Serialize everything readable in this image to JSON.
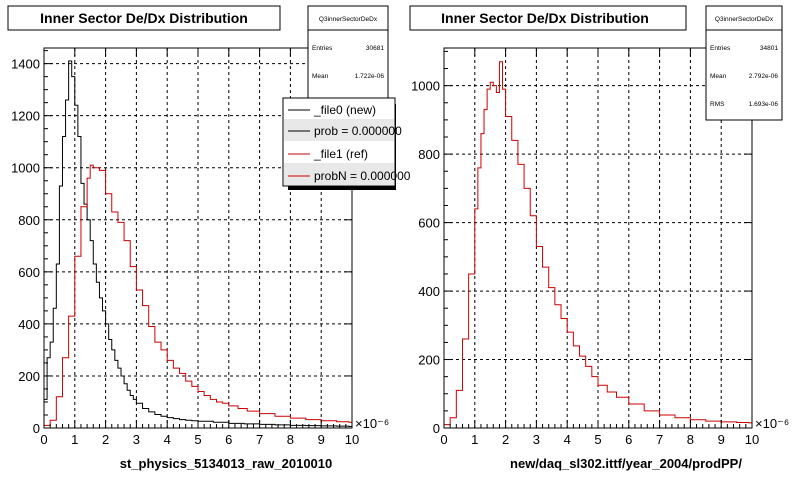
{
  "colors": {
    "new": "#000000",
    "ref": "#cc0000",
    "grid": "#000000",
    "background": "#ffffff"
  },
  "footer": "",
  "chart_data": [
    {
      "type": "line",
      "title": "Inner Sector De/Dx Distribution",
      "xlabel": "st_physics_5134013_raw_2010010",
      "ylabel": "",
      "x_exponent": "×10⁻⁶",
      "xlim": [
        0,
        10
      ],
      "ylim": [
        0,
        1460
      ],
      "x_ticks": [
        0,
        1,
        2,
        3,
        4,
        5,
        6,
        7,
        8,
        9,
        10
      ],
      "y_ticks": [
        0,
        200,
        400,
        600,
        800,
        1000,
        1200,
        1400
      ],
      "grid": true,
      "stats": {
        "header": "Q3innerSectorDeDx",
        "rows": [
          {
            "label": "Entries",
            "value": "30681"
          },
          {
            "label": "Mean",
            "value": "1.722e-06"
          }
        ]
      },
      "legend": {
        "placement": "top-right",
        "entries": [
          {
            "label": "_file0 (new)",
            "color": "#000000"
          },
          {
            "label": "prob = 0.000000",
            "color": "#000000"
          },
          {
            "label": "_file1 (ref)",
            "color": "#cc0000"
          },
          {
            "label": "probN = 0.000000",
            "color": "#cc0000"
          }
        ]
      },
      "series": [
        {
          "name": "_file0 (new)",
          "color": "#000000",
          "x": [
            0.0,
            0.1,
            0.2,
            0.3,
            0.4,
            0.5,
            0.6,
            0.7,
            0.8,
            0.9,
            1.0,
            1.1,
            1.2,
            1.3,
            1.4,
            1.5,
            1.6,
            1.7,
            1.8,
            1.9,
            2.0,
            2.1,
            2.2,
            2.3,
            2.4,
            2.5,
            2.6,
            2.7,
            2.8,
            2.9,
            3.0,
            3.2,
            3.4,
            3.6,
            3.8,
            4.0,
            4.2,
            4.4,
            4.6,
            4.8,
            5.0,
            5.5,
            6.0,
            6.5,
            7.0,
            7.5,
            8.0,
            8.5,
            9.0,
            9.5,
            9.9
          ],
          "values": [
            110,
            270,
            330,
            460,
            630,
            930,
            1120,
            1260,
            1410,
            1350,
            1240,
            1120,
            940,
            860,
            800,
            720,
            630,
            560,
            500,
            450,
            400,
            340,
            300,
            260,
            230,
            200,
            170,
            145,
            125,
            110,
            95,
            75,
            62,
            52,
            45,
            40,
            36,
            32,
            30,
            28,
            26,
            22,
            18,
            16,
            14,
            12,
            10,
            9,
            8,
            7,
            6
          ]
        },
        {
          "name": "_file1 (ref)",
          "color": "#cc0000",
          "x": [
            0.0,
            0.2,
            0.4,
            0.6,
            0.8,
            1.0,
            1.2,
            1.4,
            1.5,
            1.6,
            1.8,
            2.0,
            2.2,
            2.4,
            2.6,
            2.8,
            3.0,
            3.2,
            3.4,
            3.6,
            3.8,
            4.0,
            4.2,
            4.4,
            4.6,
            4.8,
            5.0,
            5.2,
            5.4,
            5.6,
            5.8,
            6.0,
            6.3,
            6.6,
            7.0,
            7.5,
            8.0,
            8.5,
            9.0,
            9.5,
            9.9
          ],
          "values": [
            10,
            30,
            120,
            270,
            430,
            660,
            850,
            960,
            1010,
            1000,
            990,
            900,
            830,
            790,
            720,
            620,
            530,
            470,
            390,
            330,
            300,
            260,
            230,
            210,
            180,
            160,
            140,
            125,
            110,
            100,
            95,
            85,
            75,
            65,
            55,
            45,
            38,
            32,
            28,
            24,
            22
          ]
        }
      ]
    },
    {
      "type": "line",
      "title": "Inner Sector De/Dx Distribution",
      "xlabel": "new/daq_sl302.ittf/year_2004/prodPP/",
      "ylabel": "",
      "x_exponent": "×10⁻⁶",
      "xlim": [
        0,
        10
      ],
      "ylim": [
        0,
        1110
      ],
      "x_ticks": [
        0,
        1,
        2,
        3,
        4,
        5,
        6,
        7,
        8,
        9,
        10
      ],
      "y_ticks": [
        0,
        200,
        400,
        600,
        800,
        1000
      ],
      "grid": true,
      "stats": {
        "header": "Q3innerSectorDeDx",
        "rows": [
          {
            "label": "Entries",
            "value": "34801"
          },
          {
            "label": "Mean",
            "value": "2.792e-06"
          },
          {
            "label": "RMS",
            "value": "1.693e-06"
          }
        ]
      },
      "series": [
        {
          "name": "",
          "color": "#cc0000",
          "x": [
            0.0,
            0.2,
            0.4,
            0.6,
            0.8,
            1.0,
            1.1,
            1.2,
            1.3,
            1.4,
            1.5,
            1.6,
            1.7,
            1.8,
            1.9,
            2.0,
            2.2,
            2.4,
            2.6,
            2.8,
            3.0,
            3.2,
            3.4,
            3.6,
            3.8,
            4.0,
            4.2,
            4.4,
            4.6,
            4.8,
            5.0,
            5.3,
            5.6,
            6.0,
            6.5,
            7.0,
            7.5,
            8.0,
            8.5,
            9.0,
            9.5,
            9.9
          ],
          "values": [
            10,
            30,
            110,
            260,
            450,
            640,
            760,
            860,
            930,
            990,
            1010,
            1000,
            980,
            1070,
            990,
            910,
            840,
            770,
            700,
            620,
            530,
            470,
            410,
            360,
            320,
            280,
            240,
            210,
            180,
            150,
            125,
            105,
            90,
            70,
            50,
            38,
            30,
            24,
            20,
            18,
            16,
            15
          ]
        }
      ]
    }
  ]
}
